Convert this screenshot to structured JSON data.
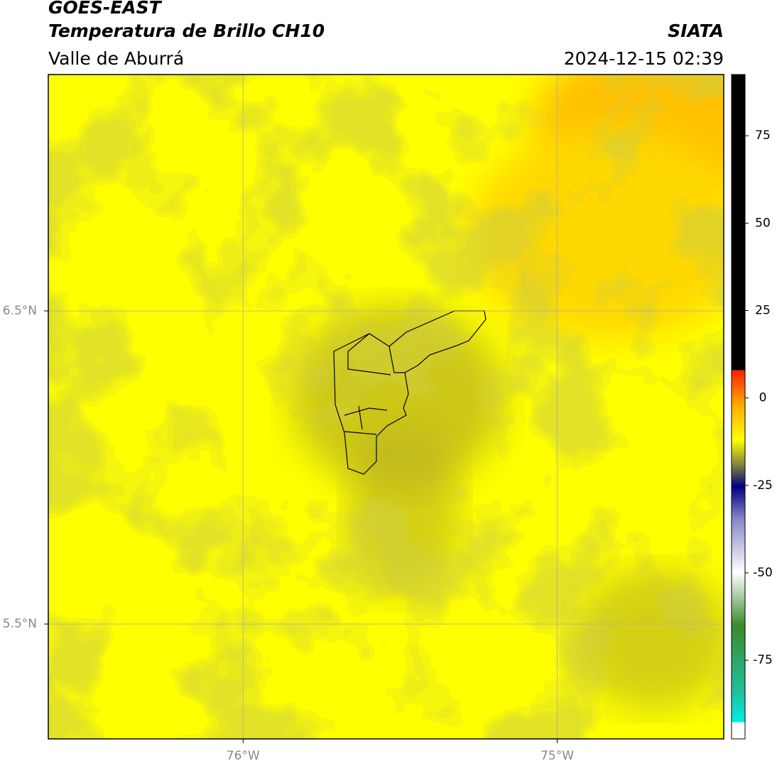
{
  "header": {
    "title": "GOES-EAST",
    "subtitle": "Temperatura de Brillo CH10",
    "region": "Valle de Aburrá",
    "source": "SIATA",
    "timestamp": "2024-12-15 02:39"
  },
  "map": {
    "xlim": [
      -76.62,
      -74.47
    ],
    "ylim": [
      5.133,
      7.255
    ],
    "xticks": [
      {
        "value": -76,
        "label": "76°W"
      },
      {
        "value": -75,
        "label": "75°W"
      }
    ],
    "yticks": [
      {
        "value": 6.5,
        "label": "6.5°N"
      },
      {
        "value": 5.5,
        "label": "5.5°N"
      }
    ],
    "grid": true
  },
  "colorbar": {
    "lim": [
      -97.5,
      92.5
    ],
    "ticks": [
      75,
      50,
      25,
      0,
      -25,
      -50,
      -75
    ]
  }
}
